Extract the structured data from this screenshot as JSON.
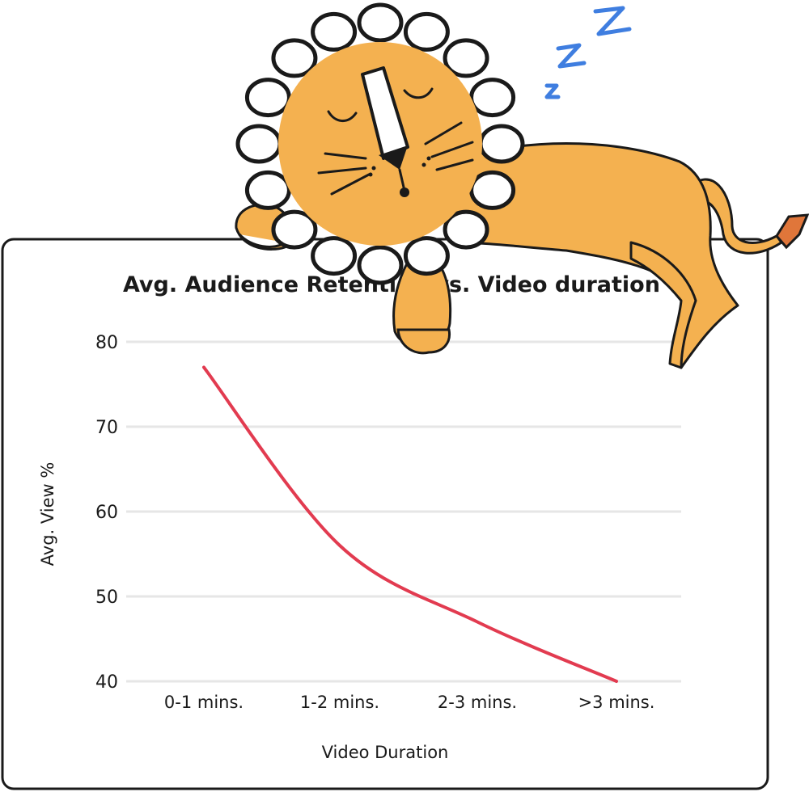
{
  "chart_data": {
    "type": "line",
    "title": "Avg. Audience Retention vs. Video duration",
    "xlabel": "Video Duration",
    "ylabel": "Avg. View %",
    "categories": [
      "0-1 mins.",
      "1-2 mins.",
      "2-3 mins.",
      ">3 mins."
    ],
    "series": [
      {
        "values": [
          77,
          56,
          47,
          40
        ]
      }
    ],
    "ylim": [
      40,
      80
    ],
    "yticks": [
      "80",
      "70",
      "60",
      "50",
      "40"
    ],
    "grid": true,
    "line_color": "#e23b50",
    "legend": "none"
  },
  "decoration": {
    "mascot": "sleeping-lion-icon",
    "sleep_letters": [
      "z",
      "Z",
      "Z"
    ],
    "colors": {
      "lion": "#f4b150",
      "zzz": "#3f7ee0"
    }
  }
}
